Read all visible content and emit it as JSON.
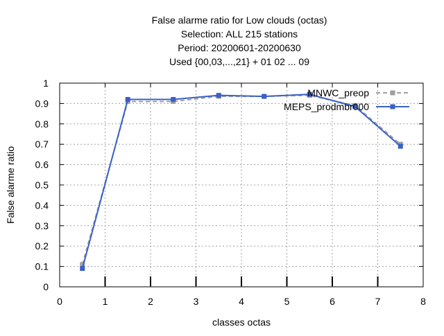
{
  "chart_data": {
    "type": "line",
    "title_lines": [
      "False alarme ratio  for Low clouds (octas)",
      "Selection: ALL    215 stations",
      "Period: 20200601-20200630",
      "Used {00,03,...,21} + 01 02 ... 09"
    ],
    "xlabel": "classes octas",
    "ylabel": "False alarme ratio",
    "xlim": [
      0,
      8
    ],
    "ylim": [
      0,
      1
    ],
    "x_ticks": [
      "0",
      "1",
      "2",
      "3",
      "4",
      "5",
      "6",
      "7",
      "8"
    ],
    "y_ticks": [
      "0",
      "0.1",
      "0.2",
      "0.3",
      "0.4",
      "0.5",
      "0.6",
      "0.7",
      "0.8",
      "0.9",
      "1"
    ],
    "grid": true,
    "legend_position": "top-right",
    "x": [
      0.5,
      1.5,
      2.5,
      3.5,
      4.5,
      5.5,
      6.5,
      7.5
    ],
    "series": [
      {
        "name": "MNWC_preop",
        "color": "#a0a0a0",
        "dash": true,
        "values": [
          0.11,
          0.91,
          0.91,
          0.935,
          0.935,
          0.94,
          0.89,
          0.7
        ]
      },
      {
        "name": "MEPS_prodmbr000",
        "color": "#3a5fc8",
        "dash": false,
        "values": [
          0.09,
          0.92,
          0.92,
          0.94,
          0.935,
          0.945,
          0.885,
          0.69
        ]
      }
    ]
  }
}
